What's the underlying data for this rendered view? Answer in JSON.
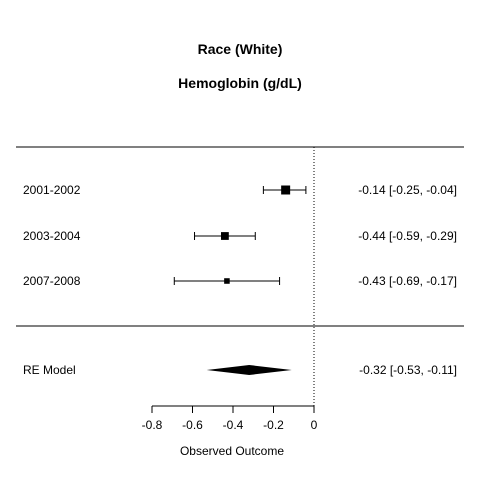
{
  "chart_data": {
    "type": "forest",
    "title": "Race (White)",
    "subtitle": "Hemoglobin (g/dL)",
    "xlabel": "Observed Outcome",
    "xlim": [
      -0.8,
      0
    ],
    "xticks": [
      -0.8,
      -0.6,
      -0.4,
      -0.2,
      0
    ],
    "xtick_labels": [
      "-0.8",
      "-0.6",
      "-0.4",
      "-0.2",
      "0"
    ],
    "reference_line": 0,
    "studies": [
      {
        "label": "2001-2002",
        "estimate": -0.14,
        "ci_low": -0.25,
        "ci_high": -0.04,
        "text": "-0.14 [-0.25, -0.04]",
        "weight": 0.55
      },
      {
        "label": "2003-2004",
        "estimate": -0.44,
        "ci_low": -0.59,
        "ci_high": -0.29,
        "text": "-0.44 [-0.59, -0.29]",
        "weight": 0.35
      },
      {
        "label": "2007-2008",
        "estimate": -0.43,
        "ci_low": -0.69,
        "ci_high": -0.17,
        "text": "-0.43 [-0.69, -0.17]",
        "weight": 0.1
      }
    ],
    "summary": {
      "label": "RE Model",
      "estimate": -0.32,
      "ci_low": -0.53,
      "ci_high": -0.11,
      "text": "-0.32 [-0.53, -0.11]"
    }
  }
}
